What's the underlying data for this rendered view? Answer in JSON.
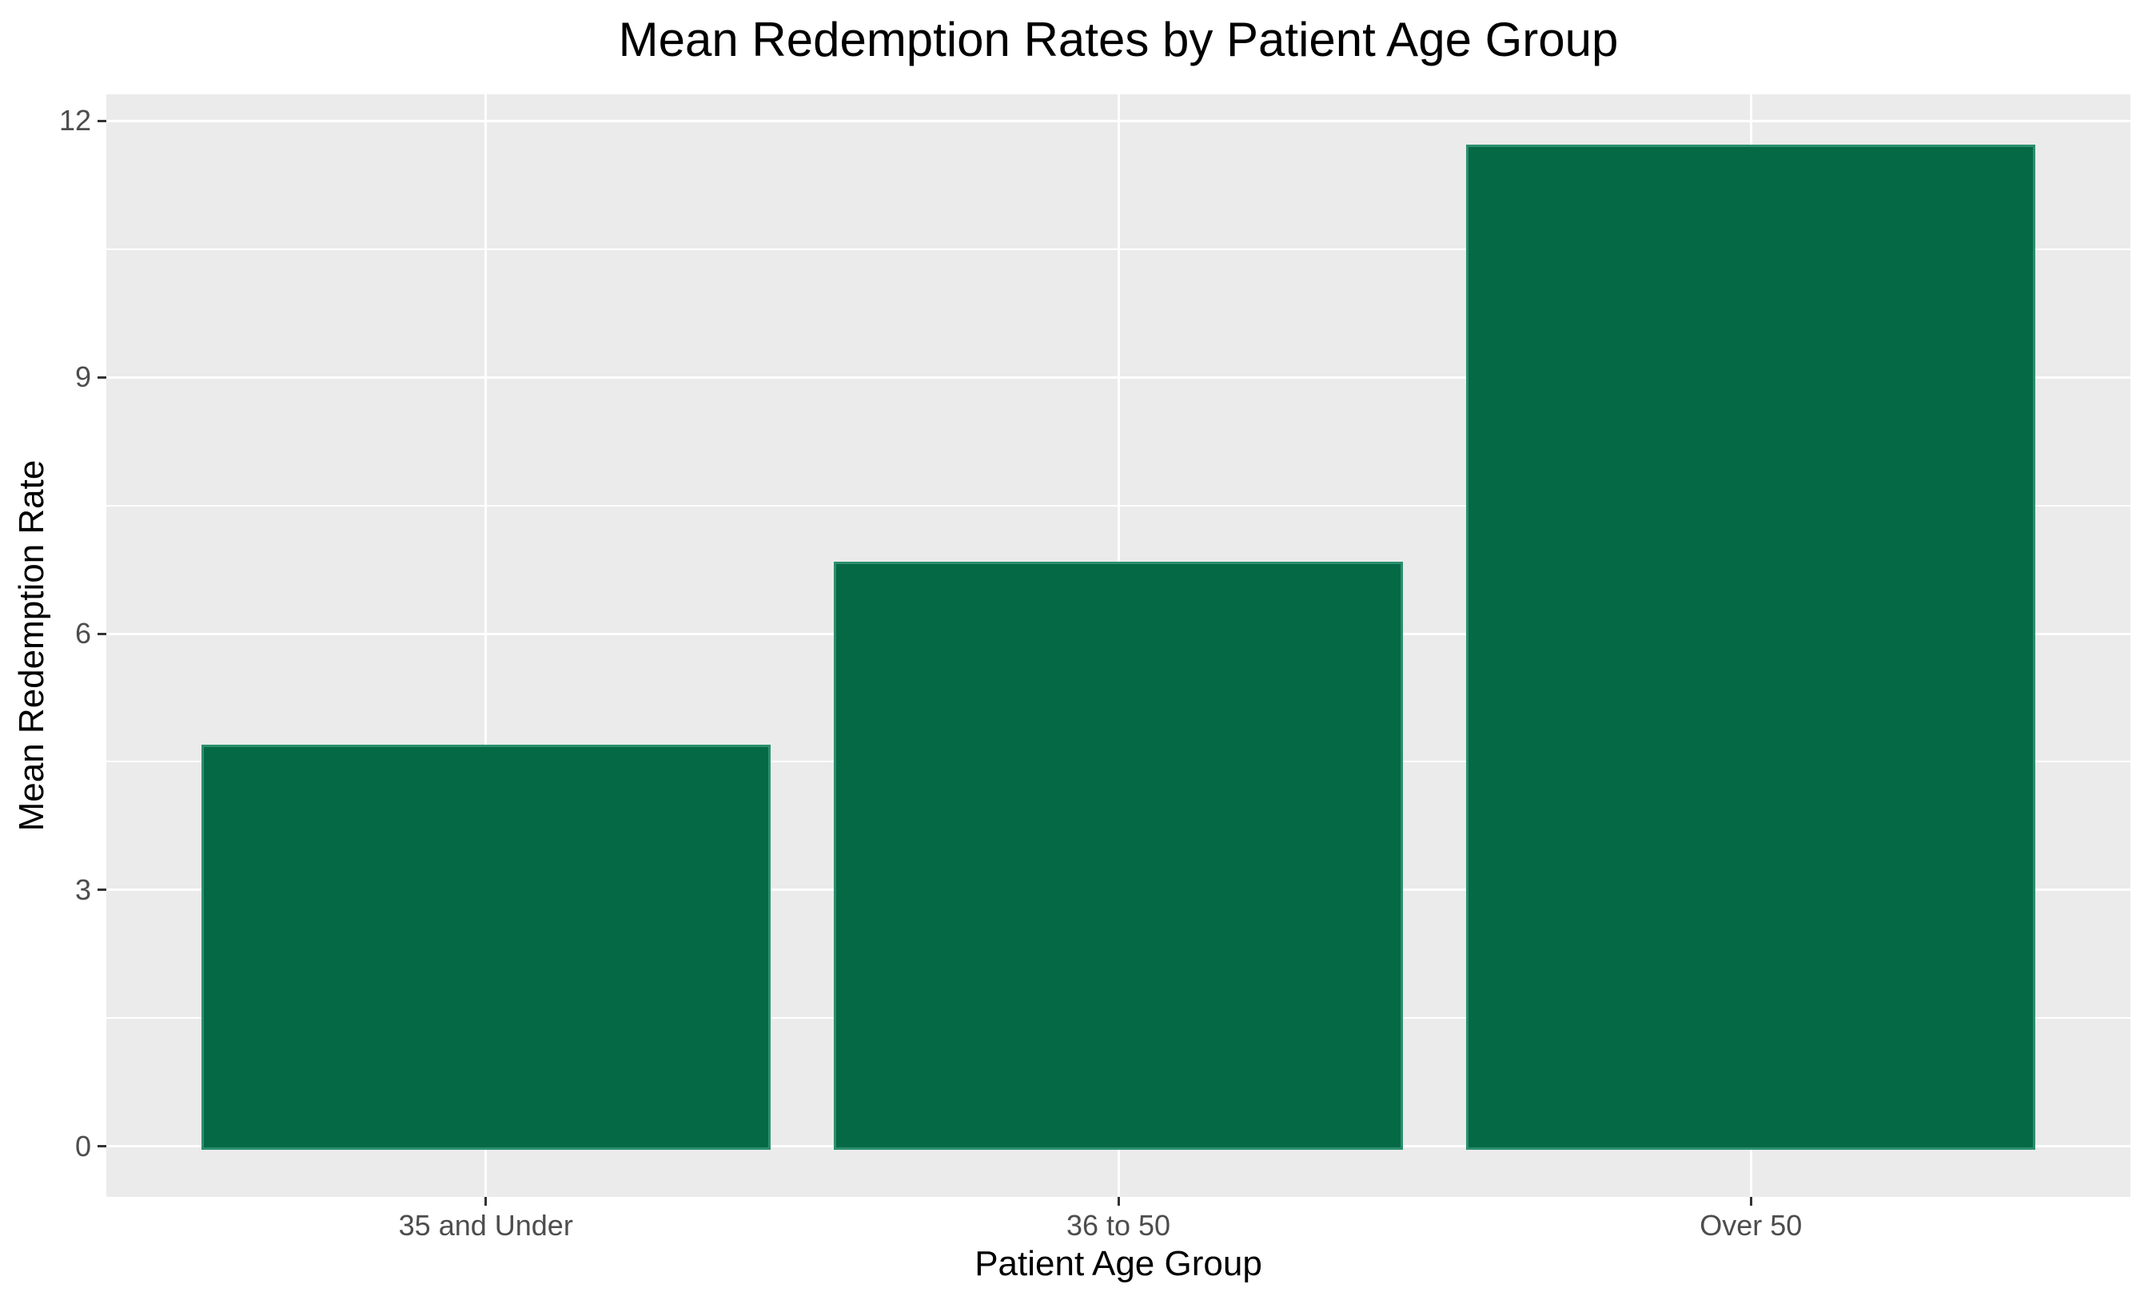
{
  "chart_data": {
    "type": "bar",
    "title": "Mean Redemption Rates by Patient Age Group",
    "xlabel": "Patient Age Group",
    "ylabel": "Mean Redemption Rate",
    "categories": [
      "35 and Under",
      "36 to 50",
      "Over 50"
    ],
    "values": [
      4.7,
      6.84,
      11.72
    ],
    "y_ticks": [
      0,
      3,
      6,
      9,
      12
    ],
    "y_minor_ticks": [
      1.5,
      4.5,
      7.5,
      10.5
    ],
    "ylim": [
      -0.59,
      12.31
    ],
    "grid": "white major and minor gridlines on gray panel",
    "legend_position": "none",
    "colors": {
      "bar_fill": "#056946",
      "bar_edge": "#2b8f6e",
      "panel_background": "#EBEBEB",
      "gridline": "#FFFFFF",
      "tick_label": "#4D4D4D",
      "axis_title": "#000000",
      "tick_mark": "#333333",
      "figure_background": "#FFFFFF"
    }
  }
}
